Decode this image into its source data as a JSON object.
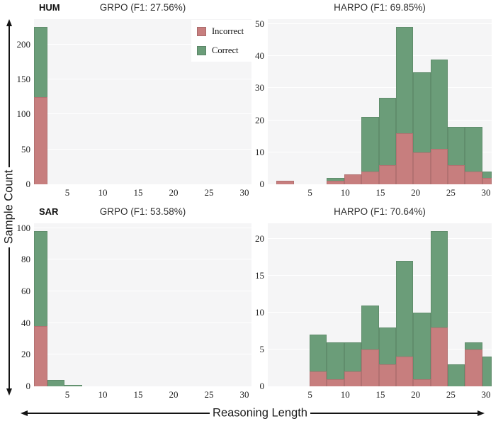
{
  "figure": {
    "y_axis_label": "Sample Count",
    "x_axis_label": "Reasoning Length"
  },
  "legend": {
    "items": [
      {
        "key": "incorrect",
        "label": "Incorrect",
        "color": "#c77e7e"
      },
      {
        "key": "correct",
        "label": "Correct",
        "color": "#6b9d79"
      }
    ]
  },
  "colors": {
    "incorrect": "#c77e7e",
    "correct": "#6b9d79",
    "plot_background": "#f5f5f6",
    "gridline": "#ffffff",
    "text": "#1a1a1a"
  },
  "chart_data": [
    {
      "id": "hum-grpo",
      "type": "bar",
      "subtype": "stacked-histogram",
      "row_label": "HUM",
      "title": "GRPO (F1: 27.56%)",
      "legend_visible": true,
      "position": {
        "row": 0,
        "col": 0
      },
      "xlim": [
        0.3,
        31.0
      ],
      "ylim": [
        0,
        236
      ],
      "yticks": [
        0,
        50,
        100,
        150,
        200
      ],
      "xticks": [
        5,
        10,
        15,
        20,
        25,
        30
      ],
      "bin_width": 2.45,
      "bins": [
        {
          "x0": -0.3,
          "incorrect": 125,
          "correct": 100
        }
      ]
    },
    {
      "id": "hum-harpo",
      "type": "bar",
      "subtype": "stacked-histogram",
      "row_label": "",
      "title": "HARPO (F1: 69.85%)",
      "legend_visible": false,
      "position": {
        "row": 0,
        "col": 1
      },
      "xlim": [
        -1.0,
        30.8
      ],
      "ylim": [
        0,
        51.5
      ],
      "yticks": [
        0,
        10,
        20,
        30,
        40,
        50
      ],
      "xticks": [
        5,
        10,
        15,
        20,
        25,
        30
      ],
      "bin_width": 2.45,
      "bins": [
        {
          "x0": 0.25,
          "incorrect": 1,
          "correct": 0
        },
        {
          "x0": 7.4,
          "incorrect": 1,
          "correct": 1
        },
        {
          "x0": 9.85,
          "incorrect": 3,
          "correct": 0
        },
        {
          "x0": 12.3,
          "incorrect": 4,
          "correct": 17
        },
        {
          "x0": 14.75,
          "incorrect": 6,
          "correct": 21
        },
        {
          "x0": 17.2,
          "incorrect": 16,
          "correct": 33
        },
        {
          "x0": 19.65,
          "incorrect": 10,
          "correct": 25
        },
        {
          "x0": 22.1,
          "incorrect": 11,
          "correct": 28
        },
        {
          "x0": 24.55,
          "incorrect": 6,
          "correct": 12
        },
        {
          "x0": 27.0,
          "incorrect": 4,
          "correct": 14
        },
        {
          "x0": 29.45,
          "incorrect": 2,
          "correct": 2
        }
      ]
    },
    {
      "id": "sar-grpo",
      "type": "bar",
      "subtype": "stacked-histogram",
      "row_label": "SAR",
      "title": "GRPO (F1: 53.58%)",
      "legend_visible": false,
      "position": {
        "row": 1,
        "col": 0
      },
      "xlim": [
        0.3,
        31.0
      ],
      "ylim": [
        0,
        103
      ],
      "yticks": [
        0,
        20,
        40,
        60,
        80,
        100
      ],
      "xticks": [
        5,
        10,
        15,
        20,
        25,
        30
      ],
      "bin_width": 2.45,
      "bins": [
        {
          "x0": -0.3,
          "incorrect": 38,
          "correct": 60
        },
        {
          "x0": 2.15,
          "incorrect": 0,
          "correct": 4
        },
        {
          "x0": 4.6,
          "incorrect": 0,
          "correct": 1
        }
      ]
    },
    {
      "id": "sar-harpo",
      "type": "bar",
      "subtype": "stacked-histogram",
      "row_label": "",
      "title": "HARPO (F1: 70.64%)",
      "legend_visible": false,
      "position": {
        "row": 1,
        "col": 1
      },
      "xlim": [
        -1.0,
        30.8
      ],
      "ylim": [
        0,
        22.1
      ],
      "yticks": [
        0,
        5,
        10,
        15,
        20
      ],
      "xticks": [
        5,
        10,
        15,
        20,
        25,
        30
      ],
      "bin_width": 2.45,
      "bins": [
        {
          "x0": 4.95,
          "incorrect": 2,
          "correct": 5
        },
        {
          "x0": 7.4,
          "incorrect": 1,
          "correct": 5
        },
        {
          "x0": 9.85,
          "incorrect": 2,
          "correct": 4
        },
        {
          "x0": 12.3,
          "incorrect": 5,
          "correct": 6
        },
        {
          "x0": 14.75,
          "incorrect": 3,
          "correct": 5
        },
        {
          "x0": 17.2,
          "incorrect": 4,
          "correct": 13
        },
        {
          "x0": 19.65,
          "incorrect": 1,
          "correct": 9
        },
        {
          "x0": 22.1,
          "incorrect": 8,
          "correct": 13
        },
        {
          "x0": 24.55,
          "incorrect": 0,
          "correct": 3
        },
        {
          "x0": 27.0,
          "incorrect": 5,
          "correct": 1
        },
        {
          "x0": 29.45,
          "incorrect": 0,
          "correct": 4
        }
      ]
    }
  ]
}
